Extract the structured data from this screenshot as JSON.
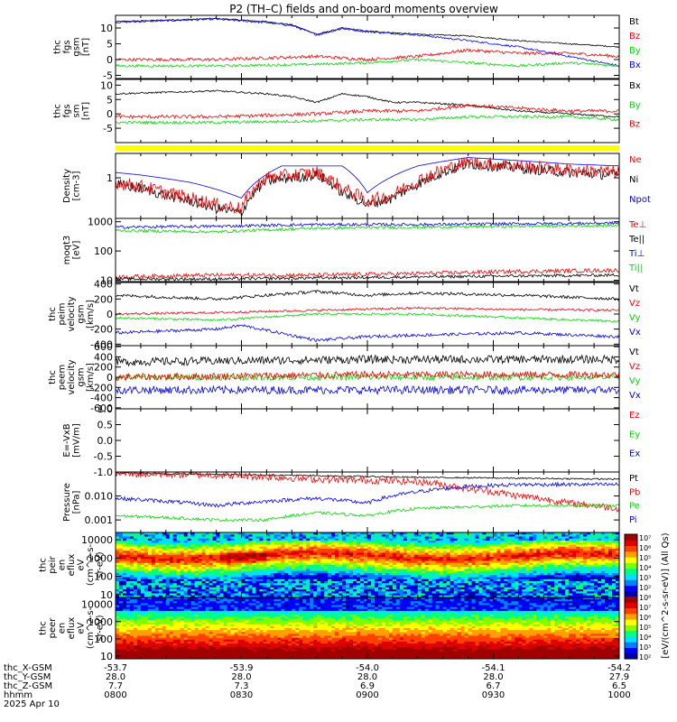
{
  "title": "P2 (TH–C) fields and on-board moments overview",
  "colors": {
    "black": "#000000",
    "red": "#ff0000",
    "green": "#00dd00",
    "blue": "#0000ff",
    "yellow": "#ffff00"
  },
  "chart_data": [
    {
      "type": "line",
      "id": "fgs",
      "ylabel": [
        "thc",
        "fgs",
        "gsm",
        "[nT]"
      ],
      "ylim": [
        -6,
        14
      ],
      "yticks": [
        {
          "v": 10,
          "t": "10"
        },
        {
          "v": 5,
          "t": "5"
        },
        {
          "v": 0,
          "t": "0"
        },
        {
          "v": -5,
          "t": "-5"
        }
      ],
      "legend": [
        {
          "t": "Bt",
          "c": "black"
        },
        {
          "t": "Bz",
          "c": "red"
        },
        {
          "t": "By",
          "c": "green"
        },
        {
          "t": "Bx",
          "c": "blue"
        }
      ],
      "series": [
        {
          "name": "Bt",
          "color": "black",
          "x": [
            0,
            0.1,
            0.2,
            0.3,
            0.35,
            0.4,
            0.45,
            0.5,
            0.55,
            0.6,
            0.7,
            0.8,
            0.9,
            1
          ],
          "y": [
            12,
            12.5,
            13,
            12,
            11,
            8,
            10,
            9,
            8.5,
            8,
            7.5,
            6,
            5,
            4
          ],
          "noise": 0.2
        },
        {
          "name": "Bx",
          "color": "blue",
          "x": [
            0,
            0.1,
            0.2,
            0.3,
            0.35,
            0.4,
            0.45,
            0.5,
            0.55,
            0.6,
            0.7,
            0.8,
            0.9,
            1
          ],
          "y": [
            11.8,
            12.3,
            12.8,
            11.7,
            10.8,
            7.8,
            9.8,
            8.8,
            8.3,
            7.8,
            6,
            4,
            1,
            -2
          ],
          "noise": 0.3
        },
        {
          "name": "Bz",
          "color": "red",
          "x": [
            0,
            0.2,
            0.4,
            0.5,
            0.6,
            0.7,
            0.8,
            0.9,
            1
          ],
          "y": [
            0,
            0,
            1,
            0,
            1,
            3,
            2,
            2,
            1
          ],
          "noise": 0.5
        },
        {
          "name": "By",
          "color": "green",
          "x": [
            0,
            0.2,
            0.4,
            0.5,
            0.6,
            0.7,
            0.8,
            0.9,
            1
          ],
          "y": [
            -2,
            -2,
            -1.5,
            -1,
            0,
            -1,
            -2,
            -1,
            -2
          ],
          "noise": 0.4
        }
      ]
    },
    {
      "type": "line",
      "id": "fgs-sm",
      "ylabel": [
        "thc",
        "fgs",
        "sm",
        "[nT]"
      ],
      "ylim": [
        -10,
        12
      ],
      "yticks": [
        {
          "v": 10,
          "t": "10"
        },
        {
          "v": 5,
          "t": "5"
        },
        {
          "v": 0,
          "t": "0"
        },
        {
          "v": -5,
          "t": "-5"
        }
      ],
      "legend": [
        {
          "t": "Bx",
          "c": "black"
        },
        {
          "t": "By",
          "c": "green"
        },
        {
          "t": "Bz",
          "c": "red"
        }
      ],
      "series": [
        {
          "name": "Bx",
          "color": "black",
          "x": [
            0,
            0.1,
            0.2,
            0.3,
            0.35,
            0.4,
            0.45,
            0.5,
            0.55,
            0.6,
            0.7,
            0.8,
            0.9,
            1
          ],
          "y": [
            7,
            7.5,
            8,
            7,
            6,
            4,
            7,
            6,
            4,
            4,
            3,
            1,
            0,
            -1
          ],
          "noise": 0.3
        },
        {
          "name": "Bz",
          "color": "red",
          "x": [
            0,
            0.2,
            0.4,
            0.5,
            0.6,
            0.7,
            0.8,
            0.9,
            1
          ],
          "y": [
            -1,
            -1,
            0,
            1,
            1,
            3,
            2,
            1,
            1
          ],
          "noise": 0.6
        },
        {
          "name": "By",
          "color": "green",
          "x": [
            0,
            0.2,
            0.4,
            0.5,
            0.6,
            0.7,
            0.8,
            0.9,
            1
          ],
          "y": [
            -3,
            -3,
            -2.5,
            -2,
            -2,
            -1,
            -1,
            -1,
            -2
          ],
          "noise": 0.5
        }
      ]
    },
    {
      "type": "line",
      "id": "density",
      "log": true,
      "ylabel": [
        "Density",
        "[cm-3]"
      ],
      "ylim": [
        0.25,
        2.3
      ],
      "yticks": [
        {
          "v": 1,
          "t": "1"
        }
      ],
      "legend": [
        {
          "t": "Ne",
          "c": "red"
        },
        {
          "t": "Ni",
          "c": "black"
        },
        {
          "t": "Npot",
          "c": "blue"
        }
      ],
      "series": [
        {
          "name": "Npot",
          "color": "blue",
          "x": [
            0,
            0.05,
            0.15,
            0.25,
            0.33,
            0.45,
            0.5,
            0.6,
            0.7,
            0.8,
            0.9,
            1
          ],
          "y": [
            1.2,
            1.1,
            0.85,
            0.5,
            1.5,
            1.5,
            0.6,
            1.5,
            2.0,
            1.8,
            1.6,
            1.5
          ],
          "noise": 0
        },
        {
          "name": "Ni",
          "color": "black",
          "x": [
            0,
            0.05,
            0.1,
            0.15,
            0.2,
            0.25,
            0.3,
            0.35,
            0.4,
            0.45,
            0.5,
            0.55,
            0.6,
            0.65,
            0.7,
            0.8,
            0.9,
            1
          ],
          "y": [
            0.8,
            0.7,
            0.55,
            0.45,
            0.35,
            0.3,
            0.9,
            1.0,
            1.1,
            0.6,
            0.4,
            0.5,
            0.8,
            1.2,
            1.6,
            1.4,
            1.2,
            1.1
          ],
          "noise": 0.08
        },
        {
          "name": "Ne",
          "color": "red",
          "x": [
            0,
            0.05,
            0.1,
            0.15,
            0.2,
            0.25,
            0.3,
            0.35,
            0.4,
            0.45,
            0.5,
            0.55,
            0.6,
            0.65,
            0.7,
            0.8,
            0.9,
            1
          ],
          "y": [
            0.85,
            0.75,
            0.6,
            0.5,
            0.4,
            0.35,
            1.0,
            1.1,
            1.2,
            0.7,
            0.45,
            0.55,
            0.9,
            1.3,
            1.7,
            1.5,
            1.3,
            1.2
          ],
          "noise": 0.1
        }
      ]
    },
    {
      "type": "line",
      "id": "temp",
      "log": true,
      "ylabel": [
        "moqt3",
        "[eV]"
      ],
      "ylim": [
        9,
        1300
      ],
      "yticks": [
        {
          "v": 1000,
          "t": "1000"
        },
        {
          "v": 100,
          "t": "100"
        },
        {
          "v": 10,
          "t": "10"
        }
      ],
      "legend": [
        {
          "t": "Te⊥",
          "c": "red"
        },
        {
          "t": "Te||",
          "c": "black"
        },
        {
          "t": "Ti⊥",
          "c": "blue"
        },
        {
          "t": "Ti||",
          "c": "green"
        }
      ],
      "series": [
        {
          "name": "Ti⊥",
          "color": "blue",
          "x": [
            0,
            0.2,
            0.4,
            0.6,
            0.8,
            1
          ],
          "y": [
            650,
            700,
            800,
            800,
            850,
            900
          ],
          "noise": 0.05
        },
        {
          "name": "Ti||",
          "color": "green",
          "x": [
            0,
            0.2,
            0.4,
            0.6,
            0.8,
            1
          ],
          "y": [
            500,
            450,
            600,
            650,
            700,
            750
          ],
          "noise": 0.05
        },
        {
          "name": "Te⊥",
          "color": "red",
          "x": [
            0,
            0.2,
            0.4,
            0.6,
            0.8,
            1
          ],
          "y": [
            13,
            15,
            15,
            17,
            20,
            22
          ],
          "noise": 0.07
        },
        {
          "name": "Te||",
          "color": "black",
          "x": [
            0,
            0.2,
            0.4,
            0.6,
            0.8,
            1
          ],
          "y": [
            11,
            11,
            12,
            13,
            14,
            15
          ],
          "noise": 0.05
        }
      ]
    },
    {
      "type": "line",
      "id": "vi",
      "ylabel": [
        "thc",
        "peim",
        "velocity",
        "gsm",
        "[km/s]"
      ],
      "ylim": [
        -420,
        420
      ],
      "yticks": [
        {
          "v": 400,
          "t": "400"
        },
        {
          "v": 200,
          "t": "200"
        },
        {
          "v": 0,
          "t": "0"
        },
        {
          "v": -200,
          "t": "-200"
        },
        {
          "v": -400,
          "t": "-400"
        }
      ],
      "legend": [
        {
          "t": "Vt",
          "c": "black"
        },
        {
          "t": "Vz",
          "c": "red"
        },
        {
          "t": "Vy",
          "c": "green"
        },
        {
          "t": "Vx",
          "c": "blue"
        }
      ],
      "series": [
        {
          "name": "Vt",
          "color": "black",
          "x": [
            0,
            0.2,
            0.4,
            0.5,
            0.6,
            0.8,
            1
          ],
          "y": [
            250,
            200,
            300,
            250,
            280,
            250,
            200
          ],
          "noise": 20
        },
        {
          "name": "Vz",
          "color": "red",
          "x": [
            0,
            0.2,
            0.4,
            0.6,
            0.8,
            1
          ],
          "y": [
            0,
            20,
            50,
            80,
            60,
            50
          ],
          "noise": 15
        },
        {
          "name": "Vy",
          "color": "green",
          "x": [
            0,
            0.2,
            0.4,
            0.6,
            0.8,
            1
          ],
          "y": [
            -50,
            -80,
            0,
            0,
            -50,
            -100
          ],
          "noise": 15
        },
        {
          "name": "Vx",
          "color": "blue",
          "x": [
            0,
            0.2,
            0.25,
            0.4,
            0.5,
            0.6,
            0.8,
            1
          ],
          "y": [
            -250,
            -200,
            -150,
            -350,
            -300,
            -280,
            -250,
            -300
          ],
          "noise": 20
        }
      ]
    },
    {
      "type": "line",
      "id": "ve",
      "ylabel": [
        "thc",
        "peem",
        "velocity",
        "gsm",
        "[km/s]"
      ],
      "ylim": [
        -620,
        620
      ],
      "yticks": [
        {
          "v": 600,
          "t": "600"
        },
        {
          "v": 400,
          "t": "400"
        },
        {
          "v": 200,
          "t": "200"
        },
        {
          "v": 0,
          "t": "0"
        },
        {
          "v": -200,
          "t": "-200"
        },
        {
          "v": -400,
          "t": "-400"
        },
        {
          "v": -600,
          "t": "-600"
        }
      ],
      "legend": [
        {
          "t": "Vt",
          "c": "black"
        },
        {
          "t": "Vz",
          "c": "red"
        },
        {
          "t": "Vy",
          "c": "green"
        },
        {
          "t": "Vx",
          "c": "blue"
        }
      ],
      "series": [
        {
          "name": "Vt",
          "color": "black",
          "x": [
            0,
            0.5,
            1
          ],
          "y": [
            300,
            350,
            350
          ],
          "noise": 80
        },
        {
          "name": "Vy",
          "color": "green",
          "x": [
            0,
            0.5,
            1
          ],
          "y": [
            0,
            0,
            0
          ],
          "noise": 60
        },
        {
          "name": "Vz",
          "color": "red",
          "x": [
            0,
            0.5,
            1
          ],
          "y": [
            0,
            50,
            50
          ],
          "noise": 70
        },
        {
          "name": "Vx",
          "color": "blue",
          "x": [
            0,
            0.5,
            1
          ],
          "y": [
            -250,
            -250,
            -250
          ],
          "noise": 80
        }
      ]
    },
    {
      "type": "line",
      "id": "efield",
      "ylabel": [
        "E=-VxB",
        "[mV/m]"
      ],
      "ylim": [
        -1,
        1
      ],
      "yticks": [
        {
          "v": 1,
          "t": "1.0"
        },
        {
          "v": 0.5,
          "t": "0.5"
        },
        {
          "v": 0,
          "t": "0.0"
        },
        {
          "v": -0.5,
          "t": "-0.5"
        },
        {
          "v": -1,
          "t": "-1.0"
        }
      ],
      "legend": [
        {
          "t": "Ez",
          "c": "red"
        },
        {
          "t": "Ey",
          "c": "green"
        },
        {
          "t": "Ex",
          "c": "blue"
        }
      ],
      "series": []
    },
    {
      "type": "line",
      "id": "pressure",
      "log": true,
      "ylabel": [
        "Pressure",
        "[nPa]"
      ],
      "ylim": [
        0.0003,
        0.1
      ],
      "yticks": [
        {
          "v": 0.01,
          "t": "0.010"
        },
        {
          "v": 0.001,
          "t": "0.001"
        }
      ],
      "legend": [
        {
          "t": "Pt",
          "c": "black"
        },
        {
          "t": "Pb",
          "c": "red"
        },
        {
          "t": "Pe",
          "c": "green"
        },
        {
          "t": "Pi",
          "c": "blue"
        }
      ],
      "series": [
        {
          "name": "Pt",
          "color": "black",
          "x": [
            0,
            0.2,
            0.4,
            0.6,
            0.8,
            1
          ],
          "y": [
            0.09,
            0.08,
            0.07,
            0.06,
            0.055,
            0.05
          ],
          "noise": 0.03
        },
        {
          "name": "Pb",
          "color": "red",
          "x": [
            0,
            0.2,
            0.4,
            0.6,
            0.7,
            0.8,
            0.9,
            1
          ],
          "y": [
            0.085,
            0.075,
            0.05,
            0.04,
            0.02,
            0.01,
            0.005,
            0.003
          ],
          "noise": 0.15
        },
        {
          "name": "Pi",
          "color": "blue",
          "x": [
            0,
            0.1,
            0.2,
            0.3,
            0.4,
            0.5,
            0.6,
            0.7,
            0.8,
            1
          ],
          "y": [
            0.008,
            0.006,
            0.004,
            0.006,
            0.008,
            0.005,
            0.015,
            0.025,
            0.03,
            0.03
          ],
          "noise": 0.08
        },
        {
          "name": "Pe",
          "color": "green",
          "x": [
            0,
            0.2,
            0.3,
            0.4,
            0.5,
            0.6,
            0.8,
            1
          ],
          "y": [
            0.0015,
            0.001,
            0.001,
            0.002,
            0.0015,
            0.003,
            0.004,
            0.004
          ],
          "noise": 0.06
        }
      ]
    },
    {
      "type": "heatmap",
      "id": "peir",
      "ylabel": [
        "thc",
        "peir",
        "en",
        "eflux",
        "eV",
        "(cm^2-s-",
        "sr-eV)"
      ],
      "log": true,
      "ylim": [
        7,
        25000
      ],
      "yticks": [
        {
          "v": 10000,
          "t": "10000"
        },
        {
          "v": 1000,
          "t": "1000"
        },
        {
          "v": 100,
          "t": "100"
        },
        {
          "v": 10,
          "t": "10"
        }
      ]
    },
    {
      "type": "heatmap",
      "id": "peer",
      "ylabel": [
        "thc",
        "peer",
        "en",
        "eflux",
        "eV",
        "(cm^2-s-",
        "sr-eV)"
      ],
      "log": true,
      "ylim": [
        7,
        25000
      ],
      "yticks": [
        {
          "v": 10000,
          "t": "10000"
        },
        {
          "v": 1000,
          "t": "1000"
        },
        {
          "v": 100,
          "t": "100"
        },
        {
          "v": 10,
          "t": "10"
        }
      ]
    }
  ],
  "colorbar": {
    "label": "[eV/(cm^2-s-sr-eV)] (All Qs)",
    "ticks": [
      "10⁷",
      "10⁶",
      "10⁵",
      "10⁴",
      "10³",
      "10²",
      "10⁸",
      "10⁷",
      "10⁶",
      "10⁵",
      "10⁴",
      "10³",
      "10²"
    ]
  },
  "xaxis": {
    "rows": [
      {
        "label": "thc_X-GSM",
        "values": [
          "-53.7",
          "-53.9",
          "-54.0",
          "-54.1",
          "-54.2"
        ]
      },
      {
        "label": "thc_Y-GSM",
        "values": [
          "28.0",
          "28.0",
          "28.0",
          "28.0",
          "27.9"
        ]
      },
      {
        "label": "thc_Z-GSM",
        "values": [
          "7.7",
          "7.3",
          "6.9",
          "6.7",
          "6.5"
        ]
      },
      {
        "label": "hhmm",
        "values": [
          "0800",
          "0830",
          "0900",
          "0930",
          "1000"
        ]
      }
    ],
    "date": "2025 Apr 10"
  }
}
